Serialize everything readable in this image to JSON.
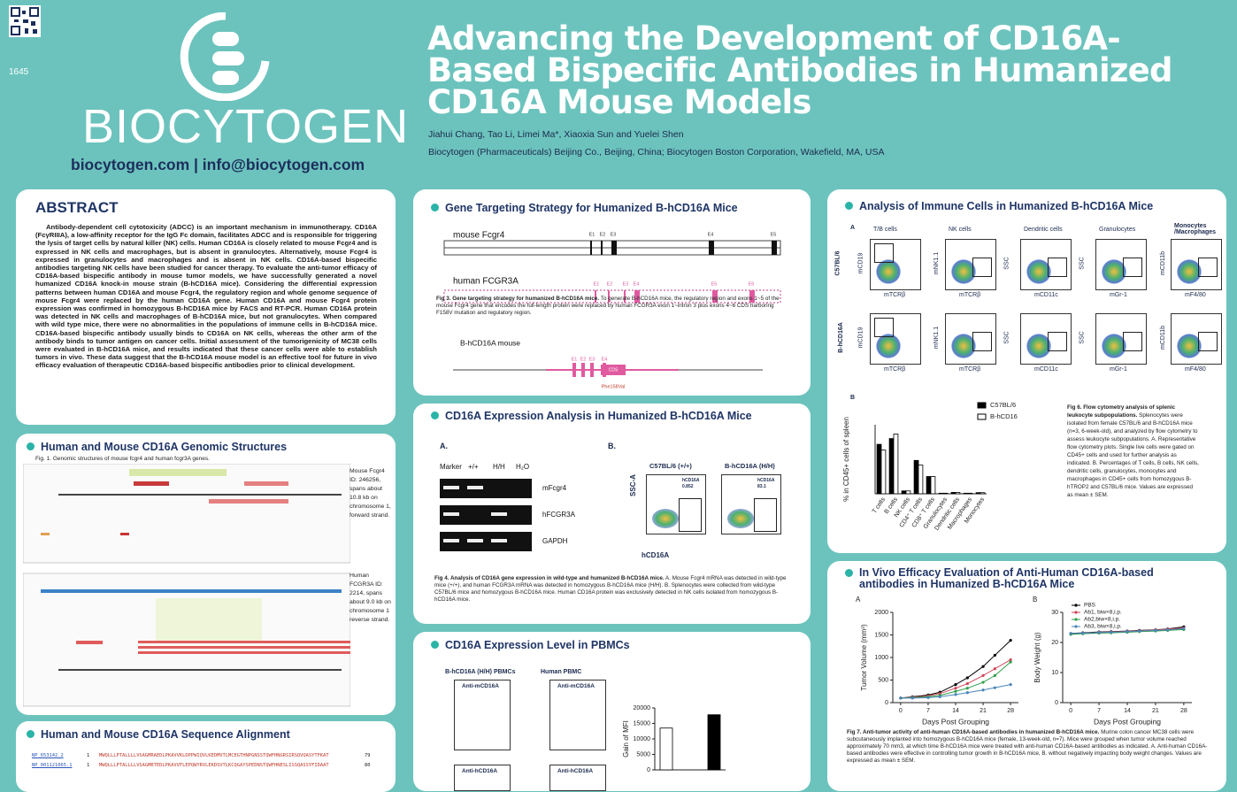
{
  "header": {
    "poster_number": "1645",
    "logo_text": "BIOCYTOGEN",
    "contact": "biocytogen.com  |  info@biocytogen.com",
    "title": "Advancing the Development of CD16A-Based Bispecific Antibodies in Humanized CD16A Mouse Models",
    "authors": "Jiahui Chang, Tao Li, Limei Ma*, Xiaoxia Sun and Yuelei Shen",
    "affiliation": "Biocytogen (Pharmaceuticals) Beijing Co., Beijing, China; Biocytogen Boston Corporation, Wakefield, MA, USA"
  },
  "abstract": {
    "title": "ABSTRACT",
    "text": "Antibody-dependent cell cytotoxicity (ADCC) is an important mechanism in immunotherapy. CD16A (FcγRIIIA), a low-affinity receptor for the IgG Fc domain, facilitates ADCC and is responsible for triggering the lysis of target cells by natural killer (NK) cells. Human CD16A is closely related to mouse Fcgr4 and is expressed in NK cells and macrophages, but is absent in granulocytes. Alternatively, mouse Fcgr4 is expressed in granulocytes and macrophages and is absent in NK cells. CD16A-based bispecific antibodies targeting NK cells have been studied for cancer therapy. To evaluate the anti-tumor efficacy of CD16A-based bispecific antibody in mouse tumor models, we have successfully generated a novel humanized CD16A knock-in mouse strain (B-hCD16A mice). Considering the differential expression patterns between human CD16A and mouse Fcgr4, the regulatory region and whole genome sequence of mouse Fcgr4 were replaced by the human CD16A gene. Human CD16A and mouse Fcgr4 protein expression was confirmed in homozygous B-hCD16A mice by FACS and RT-PCR. Human CD16A protein was detected in NK cells and macrophages of B-hCD16A mice, but not granulocytes. When compared with wild type mice, there were no abnormalities in the populations of immune cells in B-hCD16A mice. CD16A-based bispecific antibody usually binds to CD16A on NK cells, whereas the other arm of the antibody binds to tumor antigen on cancer cells. Initial assessment of the tumorigenicity of MC38 cells were evaluated in B-hCD16A mice, and results indicated that these cancer cells were able to establish tumors in vivo. These data suggest that the B-hCD16A mouse model is an effective tool for future in vivo efficacy evaluation of therapeutic CD16A-based bispecific antibodies prior to clinical development."
  },
  "genomic": {
    "title": "Human and Mouse CD16A Genomic Structures",
    "caption": "Fig. 1. Genomic structures of mouse fcgr4 and human fcgr3A genes.",
    "mouse_note": "Mouse Fcgr4 ID: 246256, spans about 10.8 kb on chromosome 1, forward strand.",
    "human_note": "Human FCGR3A ID: 2214, spans about 9.0 kb on chromosome 1 reverse strand."
  },
  "alignment": {
    "title": "Human and Mouse CD16A Sequence Alignment",
    "rows": [
      [
        "NP_653142.2",
        "1",
        "MWQLLLPTALLLLVSAGMRAEDLPKAVVKLDPPWIQVLKEDMVTLMCEGTHNPGNSSTQWFHNGRSIRSQVQASYTFKAT",
        "79"
      ],
      [
        "NP_001121065.1",
        "1",
        "MWQLLLPTALLLLVSAGMRTEDLPKAVVFLEPQWYRVLEKDSVTLKCQGAYSPEDNSTQWFHNESLISSQASSYFIDAAT",
        "80"
      ]
    ]
  },
  "targeting": {
    "title": "Gene Targeting Strategy for Humanized B-hCD16A Mice",
    "mouse_label": "mouse Fcgr4",
    "mouse_exons": [
      "E1",
      "E2",
      "E3",
      "E4",
      "E5"
    ],
    "human_label": "human FCGR3A",
    "human_exons": [
      "E1",
      "E2",
      "E3",
      "E4",
      "E5",
      "E6"
    ],
    "model_label": "B-hCD16A mouse",
    "model_exons": [
      "E1",
      "E2",
      "E3",
      "E4"
    ],
    "cds": "CDS",
    "mutation": "Phe158Val",
    "caption_title": "Fig 3. Gene targeting strategy for humanized B-hCD16A mice.",
    "caption_text": "To generate B-hCD16A mice, the regulatory region and exons 1~5 of the mouse Fcgr4 gene that encodes the full-length protein were replaced by human FCGR3A exon 1~intron 3 plus exons 4~6 CDS harboring F158V mutation and regulatory region."
  },
  "expression": {
    "title": "CD16A Expression Analysis in Humanized B-hCD16A Mice",
    "panel_a": "A.",
    "panel_b": "B.",
    "lanes": [
      "Marker",
      "+/+",
      "H/H",
      "H₂O"
    ],
    "genes": [
      "mFcgr4",
      "hFCGR3A",
      "GAPDH"
    ],
    "flow_titles": [
      "C57BL/6 (+/+)",
      "B-hCD16A (H/H)"
    ],
    "gate_name": "hCD16A",
    "gate_values": [
      "0.852",
      "83.1"
    ],
    "y_axis": "SSC-A",
    "x_axis": "hCD16A",
    "caption_title": "Fig 4. Analysis of CD16A gene expression in wild-type and humanized B-hCD16A mice.",
    "caption_text": "A. Mouse Fcgr4 mRNA was detected in wild-type mice (+/+), and human FCGR3A mRNA was detected in homozygous B-hCD16A mice (H/H). B. Splenocytes were collected from wild-type C57BL/6 mice and homozygous B-hCD16A mice. Human CD16A protein was exclusively detected in NK cells isolated from homozygous B-hCD16A mice."
  },
  "pbmc": {
    "title": "CD16A Expression Level in PBMCs",
    "columns": [
      "B-hCD16A (H/H) PBMCs",
      "Human PBMC"
    ],
    "row1": "Anti-mCD16A",
    "row2": "Anti-hCD16A"
  },
  "immune": {
    "title": "Analysis of Immune Cells in Humanized B-hCD16A Mice",
    "panel_a": "A",
    "panel_b": "B",
    "columns": [
      "T/B cells",
      "NK cells",
      "Dendritic cells",
      "Granulocytes",
      "Monocytes /Macrophages"
    ],
    "rows": [
      "C57BL/6",
      "B-hCD16A"
    ],
    "x_axes": [
      "mTCRβ",
      "mTCRβ",
      "mCD11c",
      "mGr-1",
      "mF4/80"
    ],
    "y_axes": [
      "mCD19",
      "mNK1.1",
      "SSC",
      "SSC",
      "mCD11b"
    ],
    "caption_title": "Fig 6. Flow cytometry analysis of splenic leukocyte subpopulations.",
    "caption_text": "Splenocytes were isolated from female C57BL/6 and B-hCD16A mice (n=3, 6-week-old), and analyzed by flow cytometry to assess leukocyte subpopulations. A. Representative flow cytometry plots. Single live cells were gated on CD45+ cells and used for further analysis as indicated. B. Percentages of T cells, B cells, NK cells, dendritic cells, granulocytes, monocytes and macrophages in CD45+ cells from homozygous B-hTROP2 and C57BL/6 mice. Values are expressed as mean ± SEM."
  },
  "invivo": {
    "title": "In Vivo Efficacy Evaluation of Anti-Human CD16A-based antibodies in Humanized B-hCD16A Mice",
    "caption_title": "Fig 7. Anti-tumor activity of anti-human CD16A-based antibodies in humanized B-hCD16A mice.",
    "caption_text": "Murine colon cancer MC38 cells were subcutaneously implanted into homozygous B-hCD16A mice (female, 13-week-old, n=7). Mice were grouped when tumor volume reached approximately 70 mm3, at which time B-hCD16A mice were treated with anti-human CD16A-based antibodies as indicated. A. Anti-human CD16A-based antibodies were effective in controlling tumor growth in B-hCD16A mice, B. without negatively impacting body weight changes. Values are expressed as mean ± SEM."
  },
  "chart_data": [
    {
      "type": "bar",
      "y_label": "% in CD45+ cells of spleen",
      "categories": [
        "T cells",
        "B cells",
        "NK cells",
        "CD4⁺ T cells",
        "CD8⁺ T cells",
        "Granulocytes",
        "Dendritic cells",
        "Macrophages",
        "Monocytes"
      ],
      "series": [
        {
          "name": "C57BL/6",
          "color": "#000000",
          "values": [
            43,
            48,
            2.5,
            29,
            15,
            0.5,
            1.2,
            0.5,
            1
          ]
        },
        {
          "name": "B-hCD16",
          "color": "#ffffff",
          "values": [
            38,
            52,
            2.5,
            25,
            15,
            0.5,
            1.2,
            0.5,
            1
          ]
        }
      ],
      "ylim": [
        0,
        60
      ],
      "yticks": [],
      "legend": true
    },
    {
      "type": "bar",
      "y_label": "Gain of MFI",
      "categories": [
        null,
        null
      ],
      "series": [
        {
          "name": null,
          "color": "#ffffff",
          "values": [
            13500,
            null
          ]
        },
        {
          "name": null,
          "color": "#000000",
          "values": [
            null,
            17800
          ]
        }
      ],
      "ylim": [
        0,
        20000
      ],
      "yticks": [
        0,
        5000,
        10000,
        15000,
        20000
      ],
      "legend": false
    },
    {
      "type": "line",
      "label": "A",
      "y_label": "Tumor Volume (mm³)",
      "x_label": "Days Post Grouping",
      "x": [
        0,
        3,
        7,
        10,
        14,
        17,
        21,
        24,
        28
      ],
      "xlim": [
        -2,
        30
      ],
      "xticks": [
        0,
        7,
        14,
        21,
        28
      ],
      "ylim": [
        0,
        2000
      ],
      "yticks": [
        0,
        500,
        1000,
        1500,
        2000
      ],
      "series": [
        {
          "name": "PBS",
          "color": "#000000",
          "values": [
            100,
            130,
            170,
            230,
            400,
            550,
            800,
            1050,
            1380
          ]
        },
        {
          "name": "Ab1, biw×8,i.p.",
          "color": "#d0455a",
          "values": [
            100,
            120,
            150,
            200,
            320,
            420,
            600,
            750,
            950
          ]
        },
        {
          "name": "Ab2,biw×8,i.p.",
          "color": "#2e9e4a",
          "values": [
            100,
            110,
            130,
            160,
            250,
            320,
            450,
            600,
            900
          ]
        },
        {
          "name": "Ab3, biw×8,i.p.",
          "color": "#4a86b8",
          "values": [
            100,
            100,
            110,
            130,
            180,
            220,
            280,
            330,
            400
          ]
        }
      ],
      "legend": false
    },
    {
      "type": "line",
      "label": "B",
      "y_label": "Body Weight (g)",
      "x_label": "Days Post Grouping",
      "x": [
        0,
        3,
        7,
        10,
        14,
        17,
        21,
        24,
        28
      ],
      "xlim": [
        -2,
        30
      ],
      "xticks": [
        0,
        7,
        14,
        21,
        28
      ],
      "ylim": [
        0,
        30
      ],
      "yticks": [
        0,
        10,
        20,
        30
      ],
      "series": [
        {
          "name": "PBS",
          "color": "#000000",
          "values": [
            23,
            23.2,
            23.5,
            23.6,
            23.8,
            24,
            24.2,
            24.5,
            25.2
          ]
        },
        {
          "name": "Ab1, biw×8,i.p.",
          "color": "#d0455a",
          "values": [
            22.8,
            23,
            23.4,
            23.5,
            23.7,
            23.9,
            24.1,
            24.4,
            24.8
          ]
        },
        {
          "name": "Ab2,biw×8,i.p.",
          "color": "#2e9e4a",
          "values": [
            22.7,
            22.9,
            23.1,
            23.2,
            23.4,
            23.6,
            23.8,
            24,
            24.3
          ]
        },
        {
          "name": "Ab3, biw×8,i.p.",
          "color": "#4a86b8",
          "values": [
            23,
            23.1,
            23.3,
            23.4,
            23.6,
            23.8,
            24,
            24.2,
            24.6
          ]
        }
      ],
      "legend": true
    }
  ]
}
